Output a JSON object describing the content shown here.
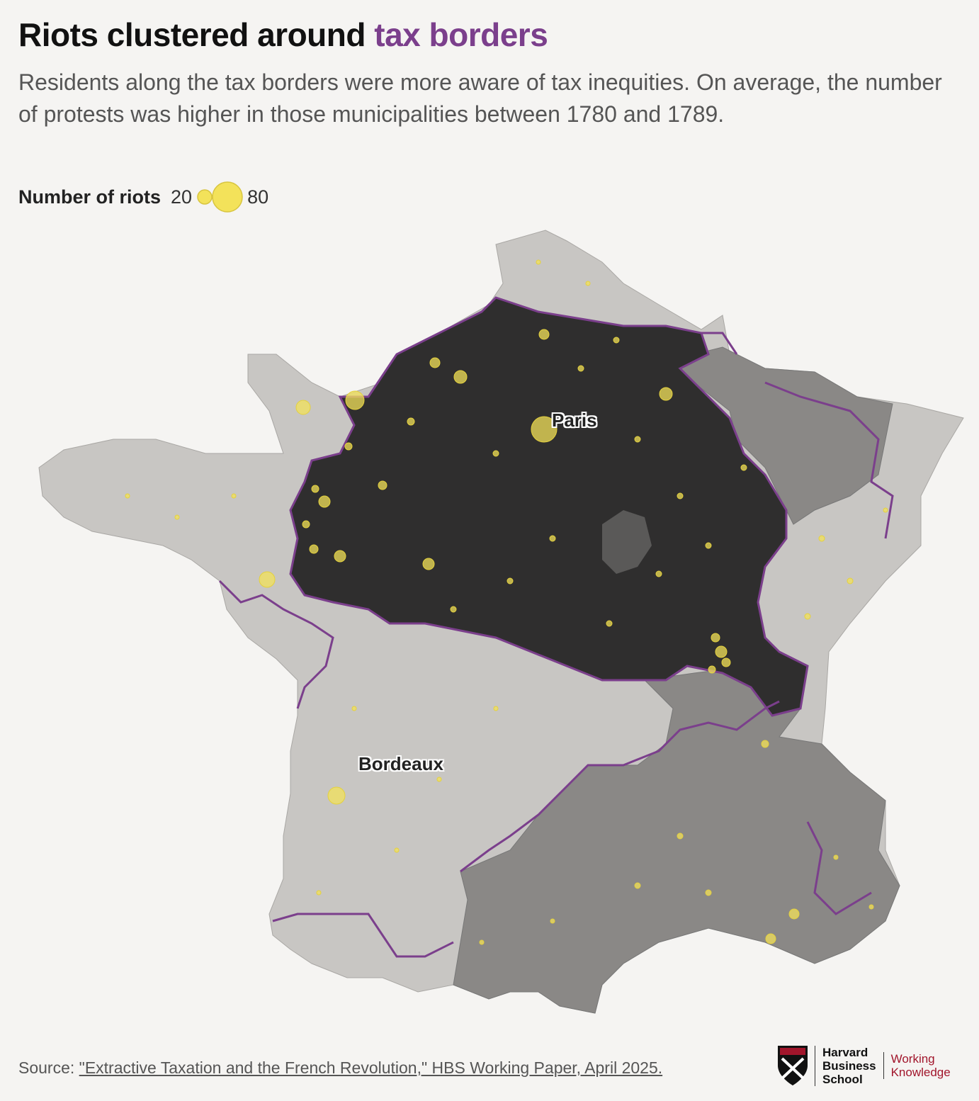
{
  "title": {
    "main": "Riots clustered around",
    "accent": "tax borders"
  },
  "subtitle": "Residents along the tax borders were more aware of tax inequities. On average, the number of protests was higher in those municipalities between 1780 and 1789.",
  "legend": {
    "label": "Number of riots",
    "min_value": "20",
    "max_value": "80"
  },
  "map_labels": {
    "paris": "Paris",
    "bordeaux": "Bordeaux"
  },
  "source": {
    "prefix": "Source:",
    "link_text": "\"Extractive Taxation and the French Revolution,\" HBS Working Paper, April 2025."
  },
  "logo": {
    "hbs_line1": "Harvard",
    "hbs_line2": "Business",
    "hbs_line3": "School",
    "wk_line1": "Working",
    "wk_line2": "Knowledge"
  },
  "colors": {
    "background": "#f5f4f2",
    "accent_purple": "#7b3f8c",
    "riot_yellow": "#f3e25a",
    "region_light": "#c8c6c3",
    "region_mid": "#8a8886",
    "region_dark": "#2f2e2e",
    "hbs_red": "#a1152b"
  }
}
